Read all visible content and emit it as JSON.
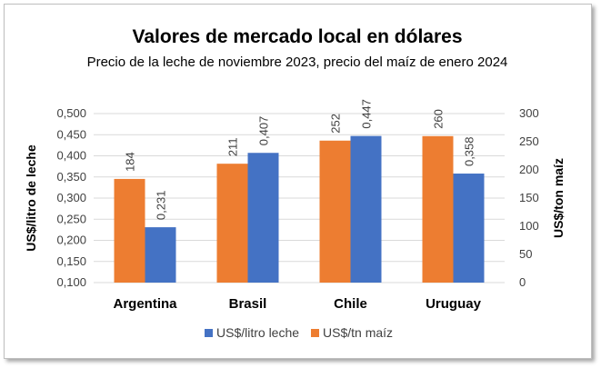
{
  "chart_data": {
    "type": "bar",
    "title": "Valores de mercado local en dólares",
    "subtitle": "Precio de la leche de noviembre 2023, precio del maíz de enero 2024",
    "categories": [
      "Argentina",
      "Brasil",
      "Chile",
      "Uruguay"
    ],
    "series": [
      {
        "name": "US$/tn maíz",
        "axis": "right",
        "color": "#ED7D31",
        "values": [
          184,
          211,
          252,
          260
        ],
        "labels": [
          "184",
          "211",
          "252",
          "260"
        ]
      },
      {
        "name": "US$/litro leche",
        "axis": "left",
        "color": "#4472C4",
        "values": [
          0.231,
          0.407,
          0.447,
          0.358
        ],
        "labels": [
          "0,231",
          "0,407",
          "0,447",
          "0,358"
        ]
      }
    ],
    "y_left": {
      "label": "US$/litro de leche",
      "ylim": [
        0.1,
        0.5
      ],
      "ticks": [
        "0,100",
        "0,150",
        "0,200",
        "0,250",
        "0,300",
        "0,350",
        "0,400",
        "0,450",
        "0,500"
      ]
    },
    "y_right": {
      "label": "US$/ton maíz",
      "ylim": [
        0,
        300
      ],
      "ticks": [
        "0",
        "50",
        "100",
        "150",
        "200",
        "250",
        "300"
      ]
    },
    "legend": {
      "placement": "bottom",
      "items": [
        {
          "label": "US$/litro leche",
          "color": "#4472C4"
        },
        {
          "label": "US$/tn maíz",
          "color": "#ED7D31"
        }
      ]
    },
    "grid": true
  }
}
